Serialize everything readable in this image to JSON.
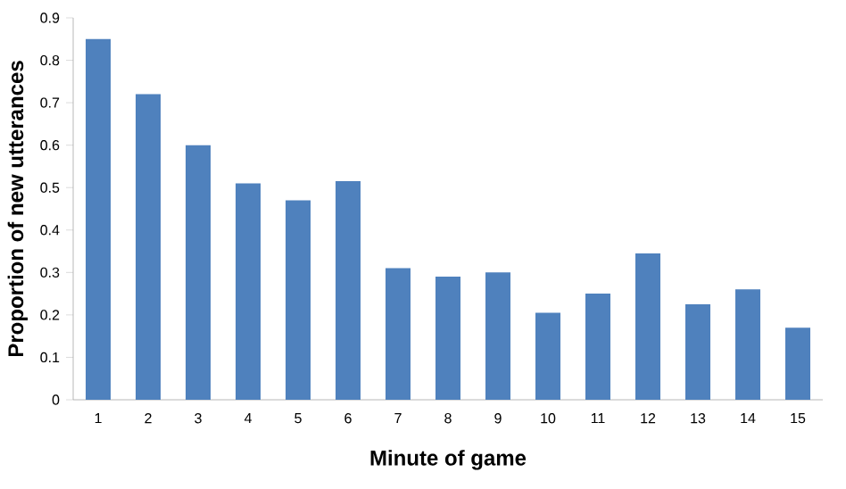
{
  "chart_data": {
    "type": "bar",
    "xlabel": "Minute of game",
    "ylabel": "Proportion of new utterances",
    "categories": [
      "1",
      "2",
      "3",
      "4",
      "5",
      "6",
      "7",
      "8",
      "9",
      "10",
      "11",
      "12",
      "13",
      "14",
      "15"
    ],
    "values": [
      0.85,
      0.72,
      0.6,
      0.51,
      0.47,
      0.515,
      0.31,
      0.29,
      0.3,
      0.205,
      0.25,
      0.345,
      0.225,
      0.26,
      0.17
    ],
    "color": "#4f81bd",
    "ylim": [
      0,
      0.9
    ],
    "yticks": [
      0,
      0.1,
      0.2,
      0.3,
      0.4,
      0.5,
      0.6,
      0.7,
      0.8,
      0.9
    ],
    "grid": false
  }
}
